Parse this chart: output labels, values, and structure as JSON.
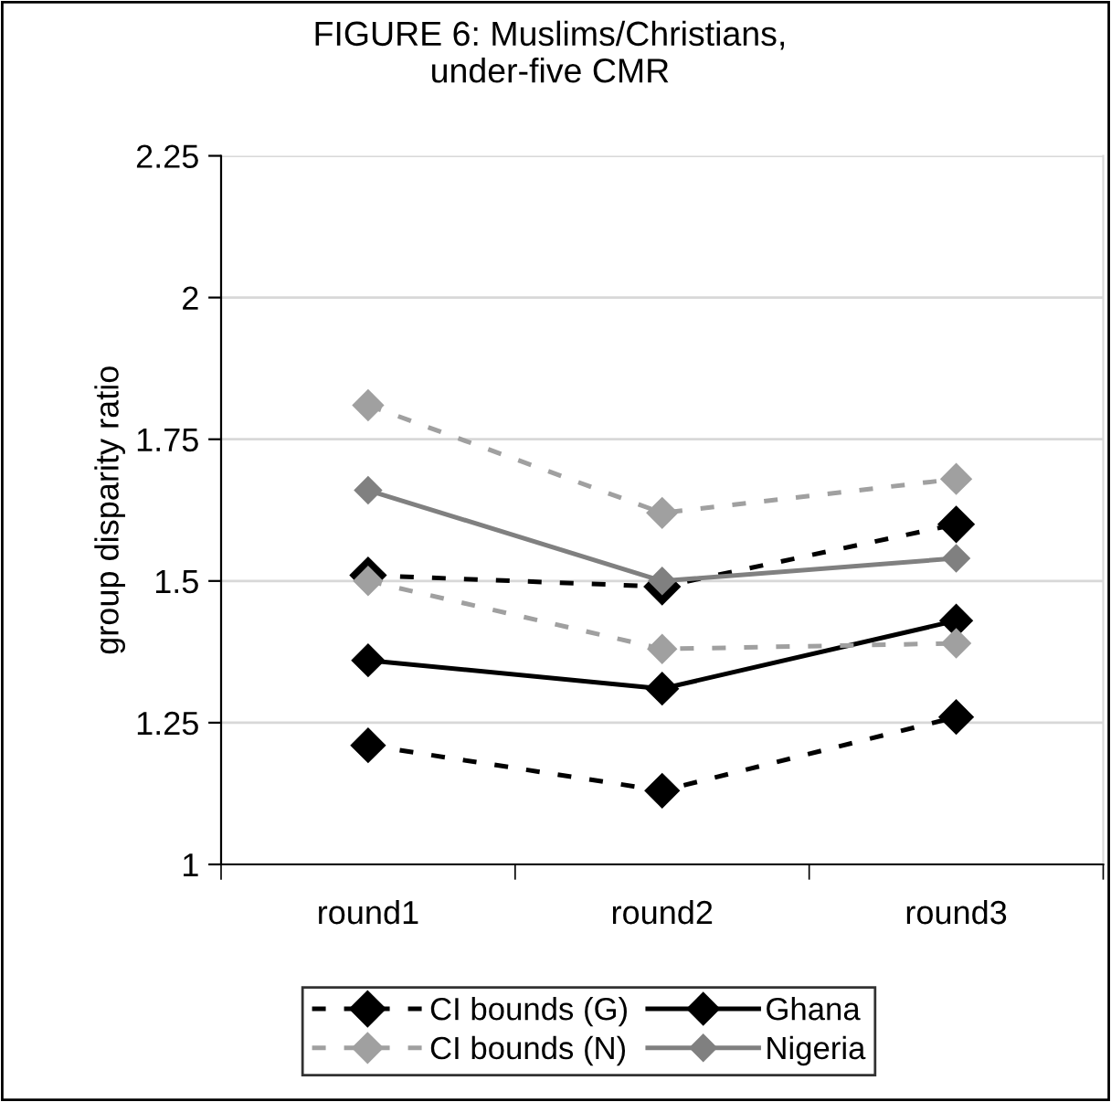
{
  "chart_data": {
    "type": "line",
    "title": "FIGURE 6: Muslims/Christians,\nunder-five CMR",
    "ylabel": "group disparity ratio",
    "categories": [
      "round1",
      "round2",
      "round3"
    ],
    "series": [
      {
        "name": "CI bounds (G)",
        "color": "#000000",
        "line_style": "dashed",
        "values": [
          1.51,
          1.49,
          1.6
        ]
      },
      {
        "color": "#000000",
        "line_style": "dashed",
        "values": [
          1.21,
          1.13,
          1.26
        ]
      },
      {
        "name": "Ghana",
        "color": "#000000",
        "line_style": "solid",
        "values": [
          1.36,
          1.31,
          1.43
        ]
      },
      {
        "name": "CI bounds (N)",
        "color": "#a0a0a0",
        "line_style": "dashed",
        "values": [
          1.81,
          1.62,
          1.68
        ]
      },
      {
        "color": "#a0a0a0",
        "line_style": "dashed",
        "values": [
          1.5,
          1.38,
          1.39
        ]
      },
      {
        "name": "Nigeria",
        "color": "#808080",
        "line_style": "solid",
        "values": [
          1.66,
          1.5,
          1.54
        ]
      }
    ],
    "ylim": [
      1,
      2.25
    ],
    "yticks": [
      1,
      1.25,
      1.5,
      1.75,
      2,
      2.25
    ],
    "grid": "y",
    "marker": "diamond",
    "legend": "bottom"
  }
}
